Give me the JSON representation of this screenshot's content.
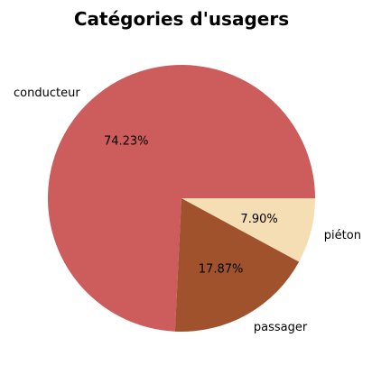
{
  "chart_data": {
    "type": "pie",
    "title": "Catégories d'usagers",
    "categories": [
      "conducteur",
      "passager",
      "piéton"
    ],
    "values": [
      74.23,
      17.87,
      7.9
    ],
    "percent_labels": [
      "74.23%",
      "17.87%",
      "7.90%"
    ],
    "colors": [
      "#cd5c5c",
      "#a0522d",
      "#f5deb3"
    ],
    "start_angle_deg": 0,
    "direction": "counterclockwise",
    "legend": "none"
  }
}
